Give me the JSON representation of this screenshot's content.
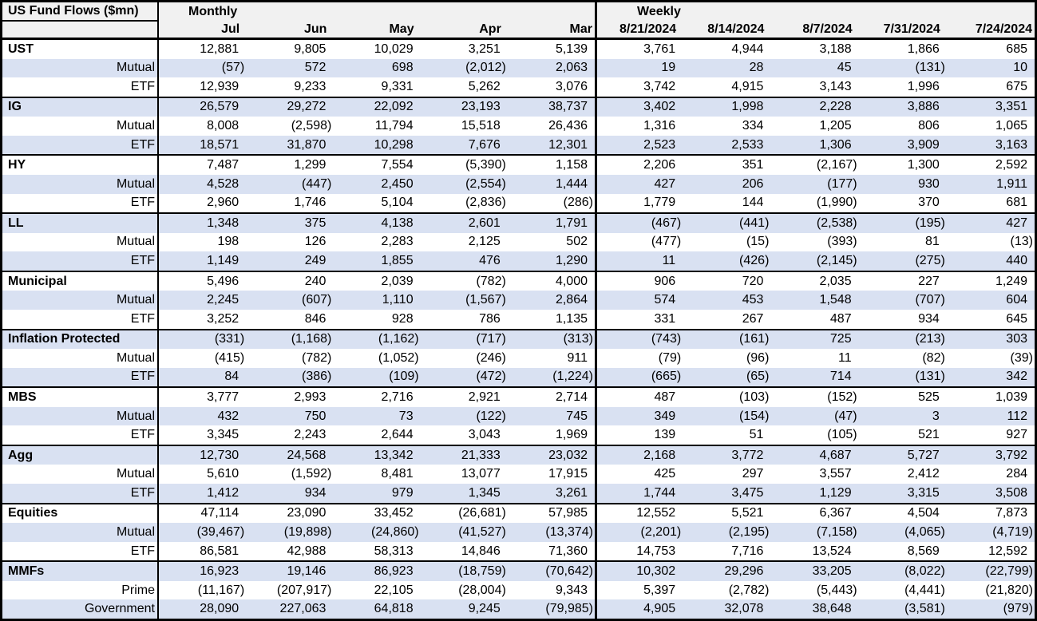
{
  "colors": {
    "stripe": "#d9e1f2",
    "header_bg": "#f1f1f1",
    "border": "#000000",
    "text": "#000000"
  },
  "chart_data": {
    "type": "table",
    "title": "US Fund Flows ($mn)",
    "col_groups": [
      {
        "label": "Monthly",
        "columns": [
          "Jul",
          "Jun",
          "May",
          "Apr",
          "Mar"
        ]
      },
      {
        "label": "Weekly",
        "columns": [
          "8/21/2024",
          "8/14/2024",
          "8/7/2024",
          "7/31/2024",
          "7/24/2024"
        ]
      }
    ],
    "sections": [
      {
        "rows": [
          {
            "label": "UST",
            "monthly": [
              "12,881",
              "9,805",
              "10,029",
              "3,251",
              "5,139"
            ],
            "weekly": [
              "3,761",
              "4,944",
              "3,188",
              "1,866",
              "685"
            ]
          },
          {
            "label": "Mutual",
            "monthly": [
              "(57)",
              "572",
              "698",
              "(2,012)",
              "2,063"
            ],
            "weekly": [
              "19",
              "28",
              "45",
              "(131)",
              "10"
            ]
          },
          {
            "label": "ETF",
            "monthly": [
              "12,939",
              "9,233",
              "9,331",
              "5,262",
              "3,076"
            ],
            "weekly": [
              "3,742",
              "4,915",
              "3,143",
              "1,996",
              "675"
            ]
          }
        ]
      },
      {
        "rows": [
          {
            "label": "IG",
            "monthly": [
              "26,579",
              "29,272",
              "22,092",
              "23,193",
              "38,737"
            ],
            "weekly": [
              "3,402",
              "1,998",
              "2,228",
              "3,886",
              "3,351"
            ]
          },
          {
            "label": "Mutual",
            "monthly": [
              "8,008",
              "(2,598)",
              "11,794",
              "15,518",
              "26,436"
            ],
            "weekly": [
              "1,316",
              "334",
              "1,205",
              "806",
              "1,065"
            ]
          },
          {
            "label": "ETF",
            "monthly": [
              "18,571",
              "31,870",
              "10,298",
              "7,676",
              "12,301"
            ],
            "weekly": [
              "2,523",
              "2,533",
              "1,306",
              "3,909",
              "3,163"
            ]
          }
        ]
      },
      {
        "rows": [
          {
            "label": "HY",
            "monthly": [
              "7,487",
              "1,299",
              "7,554",
              "(5,390)",
              "1,158"
            ],
            "weekly": [
              "2,206",
              "351",
              "(2,167)",
              "1,300",
              "2,592"
            ]
          },
          {
            "label": "Mutual",
            "monthly": [
              "4,528",
              "(447)",
              "2,450",
              "(2,554)",
              "1,444"
            ],
            "weekly": [
              "427",
              "206",
              "(177)",
              "930",
              "1,911"
            ]
          },
          {
            "label": "ETF",
            "monthly": [
              "2,960",
              "1,746",
              "5,104",
              "(2,836)",
              "(286)"
            ],
            "weekly": [
              "1,779",
              "144",
              "(1,990)",
              "370",
              "681"
            ]
          }
        ]
      },
      {
        "rows": [
          {
            "label": "LL",
            "monthly": [
              "1,348",
              "375",
              "4,138",
              "2,601",
              "1,791"
            ],
            "weekly": [
              "(467)",
              "(441)",
              "(2,538)",
              "(195)",
              "427"
            ]
          },
          {
            "label": "Mutual",
            "monthly": [
              "198",
              "126",
              "2,283",
              "2,125",
              "502"
            ],
            "weekly": [
              "(477)",
              "(15)",
              "(393)",
              "81",
              "(13)"
            ]
          },
          {
            "label": "ETF",
            "monthly": [
              "1,149",
              "249",
              "1,855",
              "476",
              "1,290"
            ],
            "weekly": [
              "11",
              "(426)",
              "(2,145)",
              "(275)",
              "440"
            ]
          }
        ]
      },
      {
        "rows": [
          {
            "label": "Municipal",
            "monthly": [
              "5,496",
              "240",
              "2,039",
              "(782)",
              "4,000"
            ],
            "weekly": [
              "906",
              "720",
              "2,035",
              "227",
              "1,249"
            ]
          },
          {
            "label": "Mutual",
            "monthly": [
              "2,245",
              "(607)",
              "1,110",
              "(1,567)",
              "2,864"
            ],
            "weekly": [
              "574",
              "453",
              "1,548",
              "(707)",
              "604"
            ]
          },
          {
            "label": "ETF",
            "monthly": [
              "3,252",
              "846",
              "928",
              "786",
              "1,135"
            ],
            "weekly": [
              "331",
              "267",
              "487",
              "934",
              "645"
            ]
          }
        ]
      },
      {
        "rows": [
          {
            "label": "Inflation Protected",
            "monthly": [
              "(331)",
              "(1,168)",
              "(1,162)",
              "(717)",
              "(313)"
            ],
            "weekly": [
              "(743)",
              "(161)",
              "725",
              "(213)",
              "303"
            ]
          },
          {
            "label": "Mutual",
            "monthly": [
              "(415)",
              "(782)",
              "(1,052)",
              "(246)",
              "911"
            ],
            "weekly": [
              "(79)",
              "(96)",
              "11",
              "(82)",
              "(39)"
            ]
          },
          {
            "label": "ETF",
            "monthly": [
              "84",
              "(386)",
              "(109)",
              "(472)",
              "(1,224)"
            ],
            "weekly": [
              "(665)",
              "(65)",
              "714",
              "(131)",
              "342"
            ]
          }
        ]
      },
      {
        "rows": [
          {
            "label": "MBS",
            "monthly": [
              "3,777",
              "2,993",
              "2,716",
              "2,921",
              "2,714"
            ],
            "weekly": [
              "487",
              "(103)",
              "(152)",
              "525",
              "1,039"
            ]
          },
          {
            "label": "Mutual",
            "monthly": [
              "432",
              "750",
              "73",
              "(122)",
              "745"
            ],
            "weekly": [
              "349",
              "(154)",
              "(47)",
              "3",
              "112"
            ]
          },
          {
            "label": "ETF",
            "monthly": [
              "3,345",
              "2,243",
              "2,644",
              "3,043",
              "1,969"
            ],
            "weekly": [
              "139",
              "51",
              "(105)",
              "521",
              "927"
            ]
          }
        ]
      },
      {
        "rows": [
          {
            "label": "Agg",
            "monthly": [
              "12,730",
              "24,568",
              "13,342",
              "21,333",
              "23,032"
            ],
            "weekly": [
              "2,168",
              "3,772",
              "4,687",
              "5,727",
              "3,792"
            ]
          },
          {
            "label": "Mutual",
            "monthly": [
              "5,610",
              "(1,592)",
              "8,481",
              "13,077",
              "17,915"
            ],
            "weekly": [
              "425",
              "297",
              "3,557",
              "2,412",
              "284"
            ]
          },
          {
            "label": "ETF",
            "monthly": [
              "1,412",
              "934",
              "979",
              "1,345",
              "3,261"
            ],
            "weekly": [
              "1,744",
              "3,475",
              "1,129",
              "3,315",
              "3,508"
            ]
          }
        ]
      },
      {
        "rows": [
          {
            "label": "Equities",
            "monthly": [
              "47,114",
              "23,090",
              "33,452",
              "(26,681)",
              "57,985"
            ],
            "weekly": [
              "12,552",
              "5,521",
              "6,367",
              "4,504",
              "7,873"
            ]
          },
          {
            "label": "Mutual",
            "monthly": [
              "(39,467)",
              "(19,898)",
              "(24,860)",
              "(41,527)",
              "(13,374)"
            ],
            "weekly": [
              "(2,201)",
              "(2,195)",
              "(7,158)",
              "(4,065)",
              "(4,719)"
            ]
          },
          {
            "label": "ETF",
            "monthly": [
              "86,581",
              "42,988",
              "58,313",
              "14,846",
              "71,360"
            ],
            "weekly": [
              "14,753",
              "7,716",
              "13,524",
              "8,569",
              "12,592"
            ]
          }
        ]
      },
      {
        "rows": [
          {
            "label": "MMFs",
            "monthly": [
              "16,923",
              "19,146",
              "86,923",
              "(18,759)",
              "(70,642)"
            ],
            "weekly": [
              "10,302",
              "29,296",
              "33,205",
              "(8,022)",
              "(22,799)"
            ]
          },
          {
            "label": "Prime",
            "monthly": [
              "(11,167)",
              "(207,917)",
              "22,105",
              "(28,004)",
              "9,343"
            ],
            "weekly": [
              "5,397",
              "(2,782)",
              "(5,443)",
              "(4,441)",
              "(21,820)"
            ]
          },
          {
            "label": "Government",
            "monthly": [
              "28,090",
              "227,063",
              "64,818",
              "9,245",
              "(79,985)"
            ],
            "weekly": [
              "4,905",
              "32,078",
              "38,648",
              "(3,581)",
              "(979)"
            ]
          }
        ]
      }
    ]
  }
}
